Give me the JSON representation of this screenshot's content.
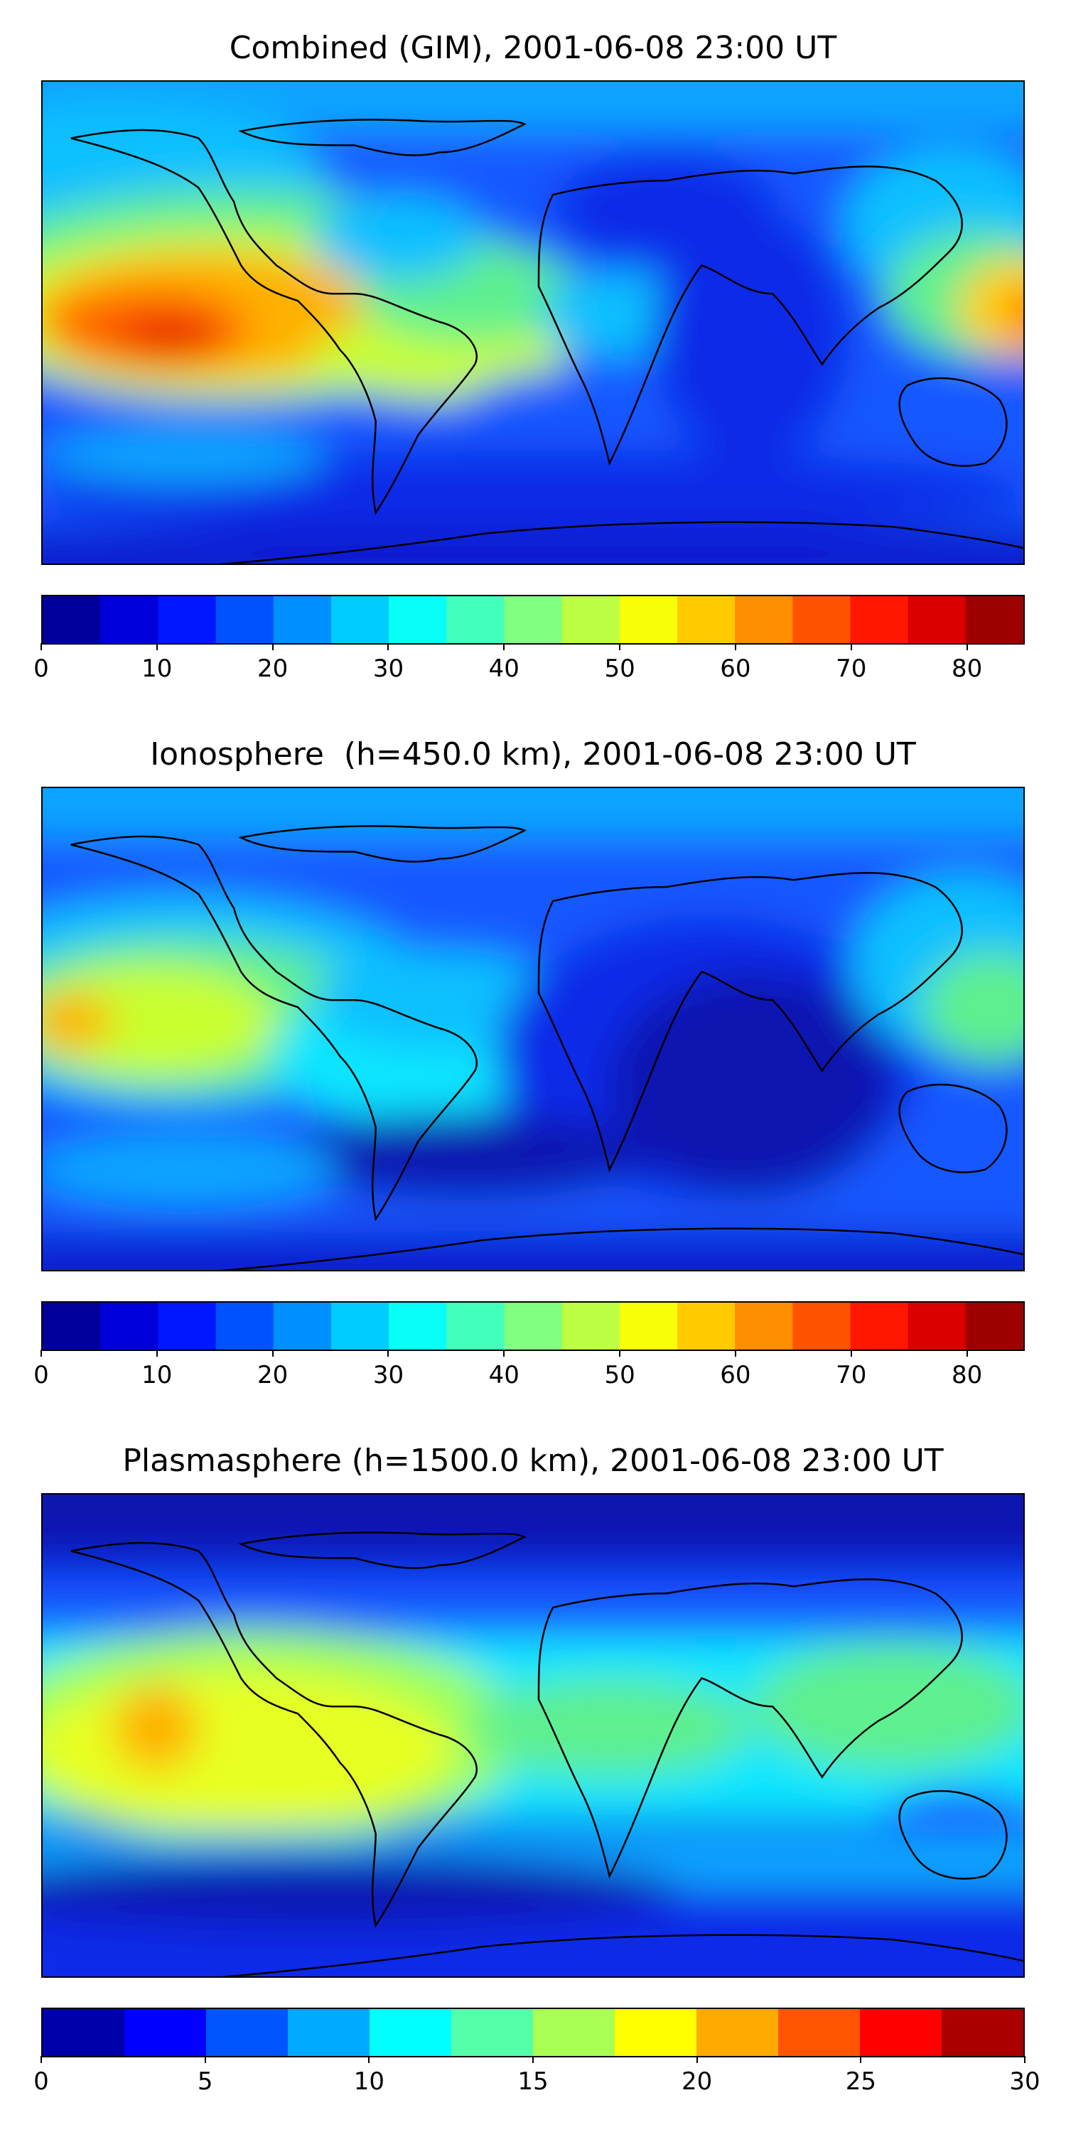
{
  "panels": [
    {
      "title": "Combined (GIM), 2001-06-08 23:00 UT",
      "colorbar": {
        "min": 0,
        "max": 85,
        "step": 5,
        "tick_labels": [
          "0",
          "10",
          "20",
          "30",
          "40",
          "50",
          "60",
          "70",
          "80"
        ],
        "tick_values": [
          0,
          10,
          20,
          30,
          40,
          50,
          60,
          70,
          80
        ]
      }
    },
    {
      "title": "Ionosphere  (h=450.0 km), 2001-06-08 23:00 UT",
      "colorbar": {
        "min": 0,
        "max": 85,
        "step": 5,
        "tick_labels": [
          "0",
          "10",
          "20",
          "30",
          "40",
          "50",
          "60",
          "70",
          "80"
        ],
        "tick_values": [
          0,
          10,
          20,
          30,
          40,
          50,
          60,
          70,
          80
        ]
      }
    },
    {
      "title": "Plasmasphere (h=1500.0 km), 2001-06-08 23:00 UT",
      "colorbar": {
        "min": 0,
        "max": 30,
        "step": 2.5,
        "tick_labels": [
          "0",
          "5",
          "10",
          "15",
          "20",
          "25",
          "30"
        ],
        "tick_values": [
          0,
          5,
          10,
          15,
          20,
          25,
          30
        ]
      }
    }
  ],
  "colormap": "jet"
}
